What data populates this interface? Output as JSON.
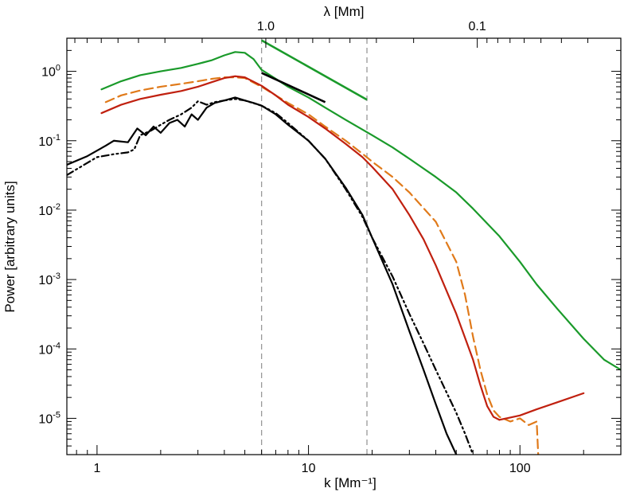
{
  "chart_data": {
    "type": "line",
    "title": "",
    "xlabel": "k  [Mm⁻¹]",
    "ylabel": "Power [arbitrary units]",
    "top_axis_label": "λ  [Mm]",
    "xscale": "log",
    "yscale": "log",
    "xlim": [
      0.72,
      300
    ],
    "ylim": [
      3e-06,
      3.0
    ],
    "x_ticks": [
      {
        "value": 1,
        "label": "1"
      },
      {
        "value": 10,
        "label": "10"
      },
      {
        "value": 100,
        "label": "100"
      }
    ],
    "y_ticks": [
      {
        "value": 1,
        "base": "10",
        "exp": "0"
      },
      {
        "value": 0.1,
        "base": "10",
        "exp": "-1"
      },
      {
        "value": 0.01,
        "base": "10",
        "exp": "-2"
      },
      {
        "value": 0.001,
        "base": "10",
        "exp": "-3"
      },
      {
        "value": 0.0001,
        "base": "10",
        "exp": "-4"
      },
      {
        "value": 1e-05,
        "base": "10",
        "exp": "-5"
      }
    ],
    "top_ticks": [
      {
        "lambda": 1.0,
        "label": "1.0"
      },
      {
        "lambda": 0.1,
        "label": "0.1"
      }
    ],
    "vertical_lines": [
      6.0,
      18.9
    ],
    "reference_lines": [
      {
        "color": "#000000",
        "x": [
          6.0,
          12.0
        ],
        "y": [
          0.95,
          0.36
        ]
      },
      {
        "color": "#1a9a2a",
        "x": [
          6.0,
          18.9
        ],
        "y": [
          2.8,
          0.39
        ]
      }
    ],
    "series": [
      {
        "color": "#1a9a2a",
        "dash": "solid",
        "x": [
          1.05,
          1.3,
          1.6,
          2.0,
          2.5,
          3.0,
          3.5,
          4.0,
          4.5,
          5.0,
          5.5,
          6.0,
          7.0,
          8.0,
          10,
          12,
          15,
          20,
          25,
          30,
          40,
          50,
          60,
          80,
          100,
          120,
          150,
          200,
          250,
          300
        ],
        "y": [
          0.55,
          0.72,
          0.88,
          1.0,
          1.12,
          1.28,
          1.45,
          1.7,
          1.9,
          1.85,
          1.5,
          1.05,
          0.78,
          0.6,
          0.42,
          0.3,
          0.2,
          0.12,
          0.08,
          0.055,
          0.03,
          0.018,
          0.0105,
          0.0042,
          0.0018,
          0.00085,
          0.00038,
          0.00014,
          7e-05,
          5e-05
        ]
      },
      {
        "color": "#e07a1a",
        "dash": "dashed",
        "x": [
          1.1,
          1.3,
          1.6,
          2.0,
          2.5,
          3.0,
          3.5,
          4.0,
          4.5,
          5.0,
          6.0,
          7.0,
          8.0,
          10,
          12,
          15,
          18,
          20,
          25,
          30,
          40,
          50,
          55,
          60,
          65,
          70,
          75,
          80,
          90,
          100,
          110,
          120,
          122
        ],
        "y": [
          0.36,
          0.45,
          0.53,
          0.6,
          0.66,
          0.72,
          0.78,
          0.82,
          0.82,
          0.8,
          0.6,
          0.45,
          0.35,
          0.24,
          0.16,
          0.1,
          0.065,
          0.05,
          0.03,
          0.018,
          0.0068,
          0.0018,
          0.0006,
          0.00015,
          5e-05,
          2.2e-05,
          1.3e-05,
          1.05e-05,
          9e-06,
          1e-05,
          8e-06,
          9e-06,
          3e-06
        ]
      },
      {
        "color": "#c0200f",
        "dash": "solid",
        "x": [
          1.05,
          1.3,
          1.6,
          2.0,
          2.5,
          3.0,
          3.5,
          4.0,
          4.5,
          5.0,
          6.0,
          7.0,
          8.0,
          10,
          12,
          15,
          18,
          20,
          25,
          30,
          35,
          40,
          50,
          60,
          65,
          70,
          75,
          80,
          100,
          120,
          150,
          200
        ],
        "y": [
          0.25,
          0.33,
          0.4,
          0.46,
          0.52,
          0.6,
          0.7,
          0.8,
          0.85,
          0.82,
          0.62,
          0.45,
          0.33,
          0.22,
          0.15,
          0.09,
          0.058,
          0.042,
          0.02,
          0.0085,
          0.0038,
          0.0016,
          0.00032,
          7e-05,
          3e-05,
          1.5e-05,
          1.05e-05,
          9.5e-06,
          1.1e-05,
          1.35e-05,
          1.7e-05,
          2.3e-05
        ]
      },
      {
        "color": "#000000",
        "dash": "solid",
        "x": [
          0.72,
          0.9,
          1.0,
          1.1,
          1.2,
          1.4,
          1.55,
          1.7,
          1.85,
          2.0,
          2.2,
          2.4,
          2.6,
          2.8,
          3.0,
          3.3,
          3.6,
          4.0,
          4.5,
          5.0,
          5.5,
          6.0,
          7.0,
          8.0,
          10,
          12,
          15,
          18,
          20,
          25,
          30,
          35,
          40,
          45,
          50
        ],
        "y": [
          0.045,
          0.06,
          0.072,
          0.085,
          0.1,
          0.095,
          0.15,
          0.12,
          0.16,
          0.13,
          0.18,
          0.2,
          0.16,
          0.24,
          0.2,
          0.3,
          0.35,
          0.38,
          0.42,
          0.38,
          0.35,
          0.32,
          0.24,
          0.17,
          0.1,
          0.055,
          0.021,
          0.0085,
          0.004,
          0.00085,
          0.00018,
          5e-05,
          1.6e-05,
          6e-06,
          3e-06
        ]
      },
      {
        "color": "#000000",
        "dash": "dashdotdot",
        "x": [
          0.72,
          0.9,
          1.0,
          1.2,
          1.4,
          1.5,
          1.6,
          1.8,
          2.0,
          2.2,
          2.5,
          2.8,
          3.0,
          3.3,
          3.6,
          4.0,
          4.5,
          5.0,
          6.0,
          7.0,
          8.0,
          10,
          12,
          15,
          18,
          20,
          25,
          30,
          35,
          40,
          50,
          55,
          60
        ],
        "y": [
          0.032,
          0.048,
          0.058,
          0.064,
          0.068,
          0.075,
          0.12,
          0.14,
          0.17,
          0.2,
          0.24,
          0.3,
          0.37,
          0.33,
          0.36,
          0.38,
          0.4,
          0.38,
          0.32,
          0.25,
          0.18,
          0.1,
          0.055,
          0.02,
          0.008,
          0.004,
          0.0011,
          0.00032,
          0.00012,
          5e-05,
          1.2e-05,
          6e-06,
          3e-06
        ]
      }
    ]
  }
}
